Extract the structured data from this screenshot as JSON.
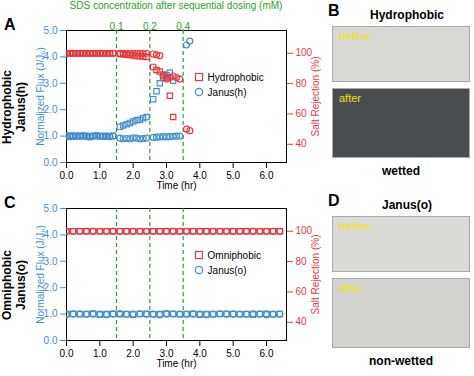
{
  "chart_data": [
    {
      "type": "scatter",
      "panel": "A",
      "row_label": [
        "Hydrophobic",
        "Janus(h)"
      ],
      "dosing_title": "SDS concentration after sequential dosing (mM)",
      "dosing_times": [
        1.5,
        2.5,
        3.5
      ],
      "dosing_concentrations": [
        0.1,
        0.2,
        0.4
      ],
      "xlabel": "Time (hr)",
      "ylabel": "Normalized Flux (J/J₀)",
      "y2label": "Salt Rejection (%)",
      "xlim": [
        0,
        6.6
      ],
      "xticks": [
        0,
        1,
        2,
        3,
        4,
        5,
        6
      ],
      "ylim": [
        0,
        5
      ],
      "yticks": [
        0,
        1,
        2,
        3,
        4,
        5
      ],
      "y2lim": [
        28,
        115
      ],
      "y2ticks": [
        40,
        60,
        80,
        100
      ],
      "series": [
        {
          "name": "Hydrophobic",
          "color": "#e8383d",
          "marker": "square",
          "axis": "y2",
          "x": [
            0,
            0.1,
            0.2,
            0.3,
            0.4,
            0.5,
            0.6,
            0.7,
            0.8,
            0.9,
            1.0,
            1.1,
            1.2,
            1.3,
            1.4,
            1.6,
            1.7,
            1.8,
            1.9,
            2.0,
            2.1,
            2.2,
            2.3,
            2.4,
            2.6,
            2.7,
            2.8,
            2.9,
            3.0,
            3.1,
            3.2
          ],
          "values": [
            100,
            100,
            100,
            100,
            100,
            100,
            100,
            100,
            100,
            100,
            100,
            100,
            100,
            100,
            100,
            99.5,
            99.3,
            99,
            98.8,
            98.5,
            98.2,
            98,
            97.8,
            97.5,
            91,
            89,
            88,
            86,
            84,
            72,
            58
          ]
        },
        {
          "name": "Hydrophobic",
          "color": "#3f8fd2",
          "marker": "square",
          "x": [
            0,
            0.1,
            0.2,
            0.3,
            0.4,
            0.5,
            0.6,
            0.7,
            0.8,
            0.9,
            1.0,
            1.1,
            1.2,
            1.3,
            1.4,
            1.6,
            1.7,
            1.8,
            1.9,
            2.0,
            2.1,
            2.2,
            2.3,
            2.4,
            2.6,
            2.7,
            2.8,
            2.9,
            3.0,
            3.1,
            3.2
          ],
          "values": [
            1.0,
            1.02,
            0.98,
            1.0,
            1.01,
            0.99,
            1.0,
            0.97,
            1.0,
            1.02,
            0.99,
            1.0,
            0.98,
            1.0,
            1.01,
            1.35,
            1.4,
            1.45,
            1.5,
            1.55,
            1.6,
            1.62,
            1.68,
            1.72,
            2.4,
            2.7,
            3.0,
            3.2,
            3.3,
            3.4,
            3.1
          ]
        },
        {
          "name": "Janus(h)",
          "color": "#3f8fd2",
          "marker": "circle",
          "x": [
            0,
            0.1,
            0.2,
            0.3,
            0.4,
            0.5,
            0.6,
            0.7,
            0.8,
            0.9,
            1.0,
            1.1,
            1.2,
            1.3,
            1.4,
            1.6,
            1.7,
            1.8,
            1.9,
            2.0,
            2.1,
            2.2,
            2.3,
            2.4,
            2.6,
            2.7,
            2.8,
            2.9,
            3.0,
            3.1,
            3.2,
            3.3,
            3.4,
            3.6,
            3.7
          ],
          "values": [
            1.0,
            0.98,
            1.01,
            1.0,
            0.99,
            1.02,
            1.0,
            0.98,
            1.0,
            1.01,
            0.99,
            1.0,
            1.0,
            0.98,
            1.0,
            0.92,
            0.9,
            0.91,
            0.9,
            0.93,
            0.92,
            0.9,
            0.91,
            0.92,
            0.95,
            0.96,
            0.97,
            0.98,
            0.97,
            0.98,
            0.99,
            1.0,
            1.0,
            4.45,
            4.6
          ]
        },
        {
          "name": "Janus(h)",
          "color": "#e8383d",
          "marker": "circle",
          "axis": "y2",
          "x": [
            0,
            0.1,
            0.2,
            0.3,
            0.4,
            0.5,
            0.6,
            0.7,
            0.8,
            0.9,
            1.0,
            1.1,
            1.2,
            1.3,
            1.4,
            1.6,
            1.7,
            1.8,
            1.9,
            2.0,
            2.1,
            2.2,
            2.3,
            2.4,
            2.6,
            2.7,
            2.8,
            2.9,
            3.0,
            3.1,
            3.2,
            3.3,
            3.4,
            3.6,
            3.7
          ],
          "values": [
            100,
            100,
            100,
            100,
            100,
            100,
            100,
            100,
            100,
            100,
            100,
            100,
            100,
            100,
            100,
            100,
            100,
            100,
            100,
            100,
            100,
            100,
            100,
            100,
            99.5,
            99,
            98.5,
            85,
            83,
            84,
            85,
            84,
            83,
            50,
            49
          ]
        }
      ]
    },
    {
      "type": "scatter",
      "panel": "C",
      "row_label": [
        "Omniphobic",
        "Janus(o)"
      ],
      "dosing_times": [
        1.5,
        2.5,
        3.5
      ],
      "xlabel": "Time (hr)",
      "ylabel": "Normalized Flux (J/J₀)",
      "y2label": "Salt Rejection (%)",
      "xlim": [
        0,
        6.6
      ],
      "xticks": [
        0,
        1,
        2,
        3,
        4,
        5,
        6
      ],
      "ylim": [
        0,
        5
      ],
      "yticks": [
        0,
        1,
        2,
        3,
        4,
        5
      ],
      "y2lim": [
        28,
        115
      ],
      "y2ticks": [
        40,
        60,
        80,
        100
      ],
      "series": [
        {
          "name": "Omniphobic",
          "color": "#e8383d",
          "marker": "square",
          "axis": "y2",
          "x": [
            0,
            0.2,
            0.4,
            0.6,
            0.8,
            1,
            1.2,
            1.4,
            1.6,
            1.8,
            2,
            2.2,
            2.4,
            2.6,
            2.8,
            3,
            3.2,
            3.4,
            3.6,
            3.8,
            4,
            4.2,
            4.4,
            4.6,
            4.8,
            5,
            5.2,
            5.4,
            5.6,
            5.8,
            6,
            6.2,
            6.4
          ],
          "values": [
            100,
            100,
            100,
            100,
            100,
            100,
            100,
            100,
            100,
            100,
            100,
            100,
            100,
            100,
            100,
            100,
            100,
            100,
            100,
            100,
            100,
            100,
            100,
            100,
            100,
            100,
            100,
            100,
            100,
            100,
            100,
            100,
            100
          ]
        },
        {
          "name": "Omniphobic",
          "color": "#3f8fd2",
          "marker": "square",
          "x": [
            0,
            0.2,
            0.4,
            0.6,
            0.8,
            1,
            1.2,
            1.4,
            1.6,
            1.8,
            2,
            2.2,
            2.4,
            2.6,
            2.8,
            3,
            3.2,
            3.4,
            3.6,
            3.8,
            4,
            4.2,
            4.4,
            4.6,
            4.8,
            5,
            5.2,
            5.4,
            5.6,
            5.8,
            6,
            6.2,
            6.4
          ],
          "values": [
            1.0,
            1.01,
            0.99,
            1.0,
            1.02,
            0.98,
            1.0,
            1.01,
            0.99,
            1.0,
            0.98,
            1.0,
            1.01,
            0.99,
            1.0,
            1.02,
            1.0,
            0.99,
            1.0,
            1.01,
            0.98,
            1.0,
            0.99,
            1.0,
            1.01,
            1.0,
            0.99,
            1.0,
            0.98,
            1.0,
            1.01,
            0.99,
            1.0
          ]
        },
        {
          "name": "Janus(o)",
          "color": "#3f8fd2",
          "marker": "circle",
          "x": [
            0,
            0.2,
            0.4,
            0.6,
            0.8,
            1,
            1.2,
            1.4,
            1.6,
            1.8,
            2,
            2.2,
            2.4,
            2.6,
            2.8,
            3,
            3.2,
            3.4,
            3.6,
            3.8,
            4,
            4.2,
            4.4,
            4.6,
            4.8,
            5,
            5.2,
            5.4,
            5.6,
            5.8,
            6,
            6.2,
            6.4
          ],
          "values": [
            0.98,
            1.0,
            1.01,
            0.99,
            1.0,
            1.0,
            0.98,
            1.0,
            1.02,
            0.99,
            1.0,
            1.01,
            0.99,
            1.0,
            0.98,
            1.0,
            1.01,
            1.0,
            0.99,
            1.0,
            1.0,
            0.98,
            1.0,
            1.01,
            0.99,
            1.0,
            1.0,
            0.99,
            1.01,
            1.0,
            0.98,
            1.0,
            1.0
          ]
        },
        {
          "name": "Janus(o)",
          "color": "#e8383d",
          "marker": "circle",
          "axis": "y2",
          "x": [
            0,
            0.2,
            0.4,
            0.6,
            0.8,
            1,
            1.2,
            1.4,
            1.6,
            1.8,
            2,
            2.2,
            2.4,
            2.6,
            2.8,
            3,
            3.2,
            3.4,
            3.6,
            3.8,
            4,
            4.2,
            4.4,
            4.6,
            4.8,
            5,
            5.2,
            5.4,
            5.6,
            5.8,
            6,
            6.2,
            6.4
          ],
          "values": [
            100,
            100,
            100,
            100,
            100,
            100,
            100,
            100,
            100,
            100,
            100,
            100,
            100,
            100,
            100,
            100,
            100,
            100,
            100,
            100,
            100,
            100,
            100,
            100,
            100,
            100,
            100,
            100,
            100,
            100,
            100,
            100,
            100
          ]
        }
      ]
    }
  ],
  "photos": [
    {
      "panel": "B",
      "title": "Hydrophobic",
      "images": [
        {
          "label": "before",
          "color": "#d9d9d6"
        },
        {
          "label": "after",
          "color": "#4a4d50"
        }
      ],
      "caption": "wetted"
    },
    {
      "panel": "D",
      "title": "Janus(o)",
      "images": [
        {
          "label": "before",
          "color": "#dadad7"
        },
        {
          "label": "after",
          "color": "#d2d2cf"
        }
      ],
      "caption": "non-wetted"
    }
  ]
}
